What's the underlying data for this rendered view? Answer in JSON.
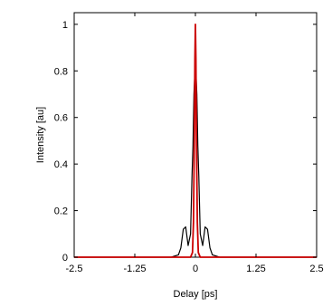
{
  "chart_data": {
    "type": "line",
    "title": "",
    "xlabel": "Delay [ps]",
    "ylabel": "Intensity [au]",
    "xlim": [
      -2.5,
      2.5
    ],
    "ylim": [
      0,
      1.05
    ],
    "x_ticks": [
      -2.5,
      -1.25,
      0,
      1.25,
      2.5
    ],
    "x_tick_labels": [
      "-2.5",
      "-1.25",
      "0",
      "1.25",
      "2.5"
    ],
    "y_ticks": [
      0,
      0.2,
      0.4,
      0.6,
      0.8,
      1
    ],
    "y_tick_labels": [
      "0",
      "0.2",
      "0.4",
      "0.6",
      "0.8",
      "1"
    ],
    "grid": false,
    "legend": "none",
    "series": [
      {
        "color": "#000000",
        "x": [
          -2.5,
          -0.5,
          -0.35,
          -0.3,
          -0.25,
          -0.2,
          -0.15,
          -0.1,
          -0.07,
          -0.05,
          -0.03,
          -0.01,
          0,
          0.01,
          0.03,
          0.05,
          0.07,
          0.1,
          0.15,
          0.2,
          0.25,
          0.3,
          0.35,
          0.5,
          2.5
        ],
        "y": [
          0,
          0,
          0.01,
          0.04,
          0.12,
          0.13,
          0.05,
          0.1,
          0.35,
          0.48,
          0.7,
          0.8,
          0.82,
          0.8,
          0.7,
          0.48,
          0.35,
          0.1,
          0.05,
          0.13,
          0.12,
          0.04,
          0.01,
          0,
          0
        ]
      },
      {
        "color": "#cc0000",
        "x": [
          -2.5,
          -0.1,
          -0.06,
          -0.04,
          -0.02,
          -0.01,
          0,
          0.01,
          0.02,
          0.04,
          0.06,
          0.1,
          2.5
        ],
        "y": [
          0,
          0,
          0.02,
          0.15,
          0.55,
          0.85,
          1.0,
          0.85,
          0.55,
          0.15,
          0.02,
          0,
          0
        ]
      }
    ]
  }
}
